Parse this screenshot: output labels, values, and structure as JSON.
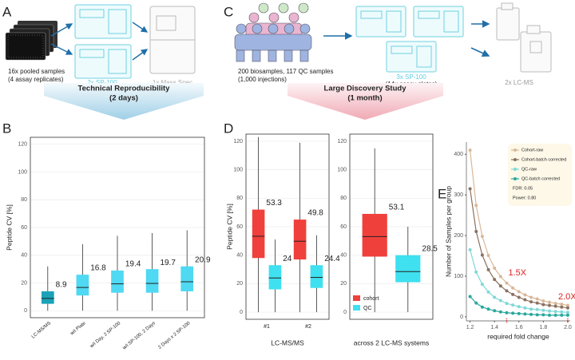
{
  "panels": {
    "A": {
      "letter": "A",
      "samples": "16x pooled samples",
      "replicates": "(4 assay replicates)",
      "sp100": "2x SP-100",
      "ms": "1x Mass Spec",
      "banner_title": "Technical Reproducibility",
      "banner_sub": "(2 days)"
    },
    "C": {
      "letter": "C",
      "samples": "200 biosamples, 117 QC samples",
      "injections": "(1,000 injections)",
      "sp100": "3x SP-100",
      "plates": "(14x assay plates)",
      "lcms": "2x LC-MS",
      "banner_title": "Large Discovery Study",
      "banner_sub": "(1 month)"
    },
    "B": {
      "letter": "B"
    },
    "D": {
      "letter": "D"
    },
    "E": {
      "letter": "E"
    }
  },
  "chart_data": [
    {
      "type": "box",
      "ylabel": "Peptide CV [%]",
      "grid": true,
      "categories": [
        "LC-MS/MS",
        "w/i Plate",
        "w/i Day, 2 SP-100",
        "w/i SP-100, 2 Days",
        "2 Days x 2 SP-100"
      ],
      "ylim": [
        -5,
        125
      ],
      "yticks": [
        0,
        20,
        40,
        60,
        80,
        100,
        120
      ],
      "series": [
        {
          "colors": [
            "#1aa2b8",
            "#4fd9f2",
            "#4fd9f2",
            "#4fd9f2",
            "#4fd9f2"
          ],
          "low": [
            0,
            0,
            0,
            0,
            0
          ],
          "q1": [
            5,
            11,
            13,
            13,
            14
          ],
          "median": [
            8.9,
            16.8,
            19.4,
            19.7,
            20.9
          ],
          "q3": [
            14,
            26,
            29,
            30,
            32
          ],
          "high": [
            32,
            48,
            54,
            56,
            58
          ]
        }
      ]
    },
    {
      "type": "box",
      "ylabel": "Peptide CV [%]",
      "xlabel": "LC-MS/MS",
      "grid": true,
      "categories": [
        "#1",
        "#2"
      ],
      "ylim": [
        -5,
        125
      ],
      "yticks": [
        0,
        20,
        40,
        60,
        80,
        100,
        120
      ],
      "series": [
        {
          "name": "cohort",
          "color": "#f0403c",
          "low": [
            0,
            0
          ],
          "q1": [
            38,
            37
          ],
          "median": [
            53.3,
            49.8
          ],
          "q3": [
            72,
            65
          ],
          "high": [
            123,
            119
          ]
        },
        {
          "name": "QC",
          "color": "#3fe0ef",
          "low": [
            0,
            0
          ],
          "q1": [
            16,
            17
          ],
          "median": [
            24,
            24.4
          ],
          "q3": [
            33,
            33
          ],
          "high": [
            51,
            54
          ]
        }
      ]
    },
    {
      "type": "box",
      "xlabel": "across 2 LC-MS systems",
      "grid": true,
      "legend": "bottom-left",
      "categories": [
        null
      ],
      "ylim": [
        -5,
        125
      ],
      "yticks": [
        0,
        20,
        40,
        60,
        80,
        100,
        120
      ],
      "series": [
        {
          "name": "cohort",
          "color": "#f0403c",
          "low": [
            0
          ],
          "q1": [
            39
          ],
          "median": [
            53.1
          ],
          "q3": [
            69
          ],
          "high": [
            115
          ]
        },
        {
          "name": "QC",
          "color": "#3fe0ef",
          "low": [
            0
          ],
          "q1": [
            21
          ],
          "median": [
            28.5
          ],
          "q3": [
            40
          ],
          "high": [
            60
          ]
        }
      ]
    },
    {
      "type": "line",
      "xlabel": "required fold change",
      "ylabel": "Number of Samples per group",
      "grid": false,
      "legend": "top-right",
      "x": [
        1.2,
        1.25,
        1.3,
        1.35,
        1.4,
        1.45,
        1.5,
        1.55,
        1.6,
        1.65,
        1.7,
        1.75,
        1.8,
        1.85,
        1.9,
        1.95,
        2.0
      ],
      "xlim": [
        1.17,
        2.02
      ],
      "xticks": [
        1.2,
        1.4,
        1.6,
        1.8,
        {
          "value": 2,
          "label": "2.0"
        }
      ],
      "ylim": [
        -10,
        430
      ],
      "yticks": [
        0,
        100,
        200,
        300,
        400
      ],
      "notes": [
        "FDR: 0.05",
        "Power: 0.80"
      ],
      "annotations": [
        {
          "text": "1.5X",
          "x": 1.5,
          "color": "#e02020"
        },
        {
          "text": "2.0X",
          "x": 2,
          "color": "#e02020"
        }
      ],
      "series": [
        {
          "name": "Cohort-raw",
          "color": "#d9b899",
          "values": [
            410,
            274,
            198,
            151,
            120,
            99,
            83,
            71,
            62,
            54,
            48,
            44,
            39,
            36,
            33,
            31,
            28
          ]
        },
        {
          "name": "Cohort-batch corrected",
          "color": "#8b7160",
          "values": [
            315,
            210,
            152,
            116,
            92,
            76,
            64,
            55,
            48,
            42,
            37,
            34,
            30,
            28,
            26,
            24,
            22
          ]
        },
        {
          "name": "QC-raw",
          "color": "#80d8d8",
          "values": [
            165,
            110,
            80,
            61,
            48,
            40,
            33,
            29,
            25,
            22,
            19,
            18,
            16,
            14,
            13,
            12,
            11
          ]
        },
        {
          "name": "QC-batch corrected",
          "color": "#2aa89c",
          "values": [
            50,
            34,
            24,
            19,
            15,
            12,
            10,
            9,
            8,
            7,
            6,
            5,
            5,
            4,
            4,
            4,
            4
          ]
        }
      ]
    }
  ]
}
